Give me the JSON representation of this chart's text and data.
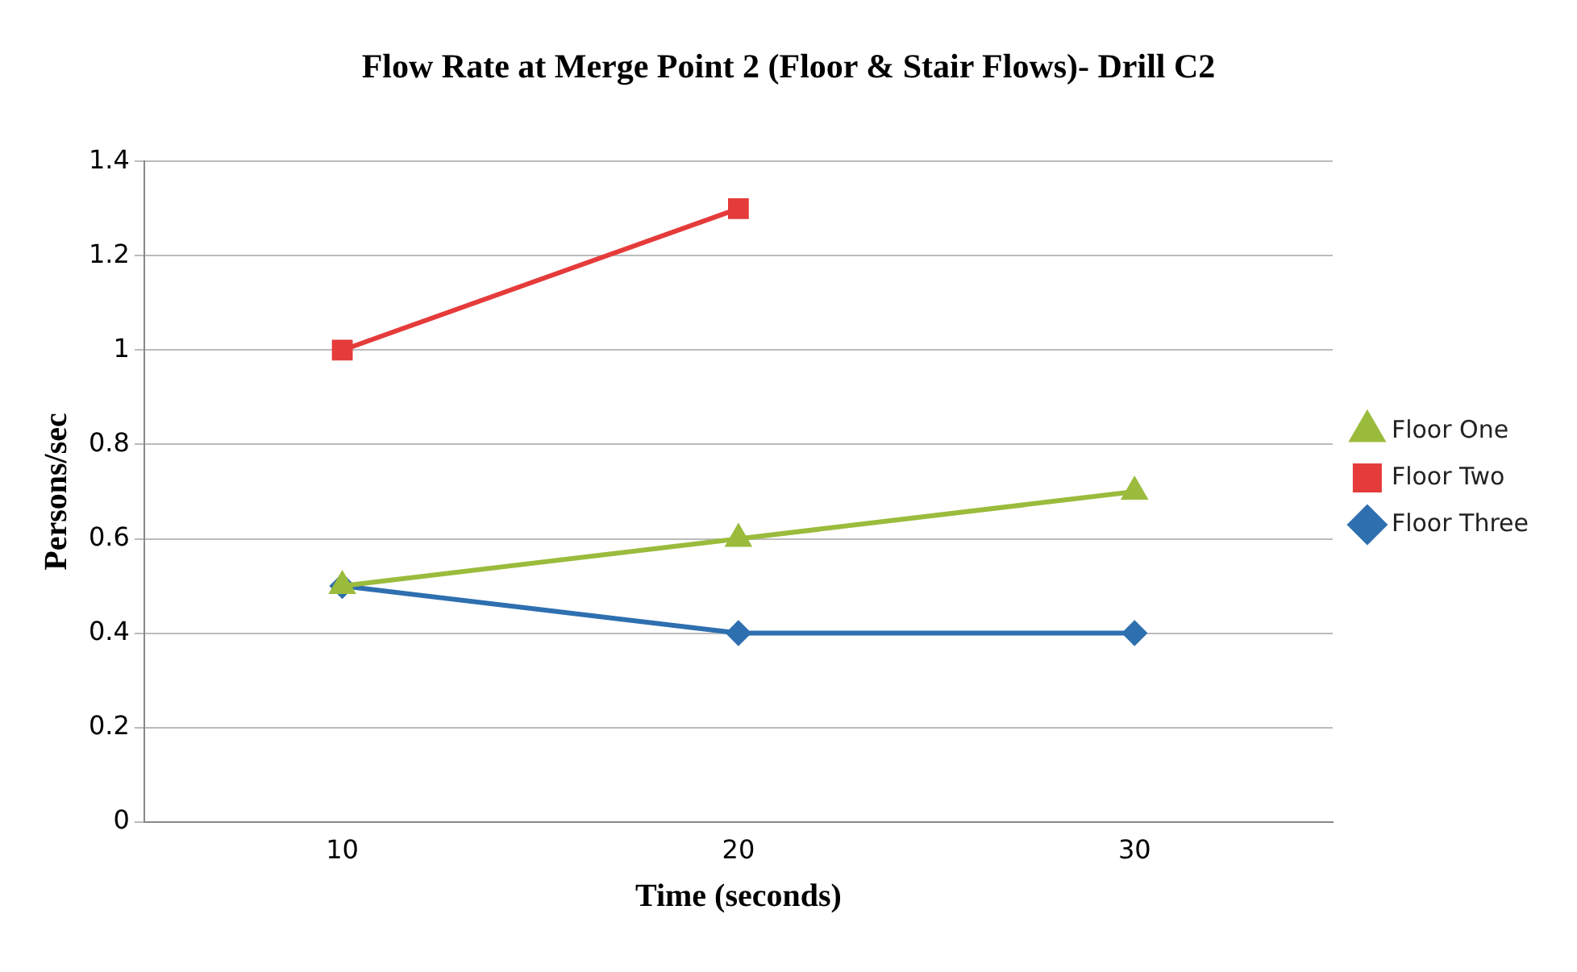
{
  "chart_data": {
    "type": "line",
    "title": "Flow Rate at Merge Point 2 (Floor & Stair Flows)- Drill C2",
    "xlabel": "Time (seconds)",
    "ylabel": "Persons/sec",
    "categories": [
      "10",
      "20",
      "30"
    ],
    "series": [
      {
        "name": "Floor Three",
        "color": "#2e6fb0",
        "marker": "diamond",
        "values": [
          0.5,
          0.4,
          0.4
        ]
      },
      {
        "name": "Floor Two",
        "color": "#e53b3b",
        "marker": "square",
        "values": [
          1.0,
          1.3,
          null
        ]
      },
      {
        "name": "Floor One",
        "color": "#9bbb3c",
        "marker": "triangle",
        "values": [
          0.5,
          0.6,
          0.7
        ]
      }
    ],
    "ylim": [
      0,
      1.4
    ],
    "yticks": [
      0,
      0.2,
      0.4,
      0.6,
      0.8,
      1,
      1.2,
      1.4
    ],
    "grid": "y",
    "legend": "right",
    "line_style": "solid"
  }
}
